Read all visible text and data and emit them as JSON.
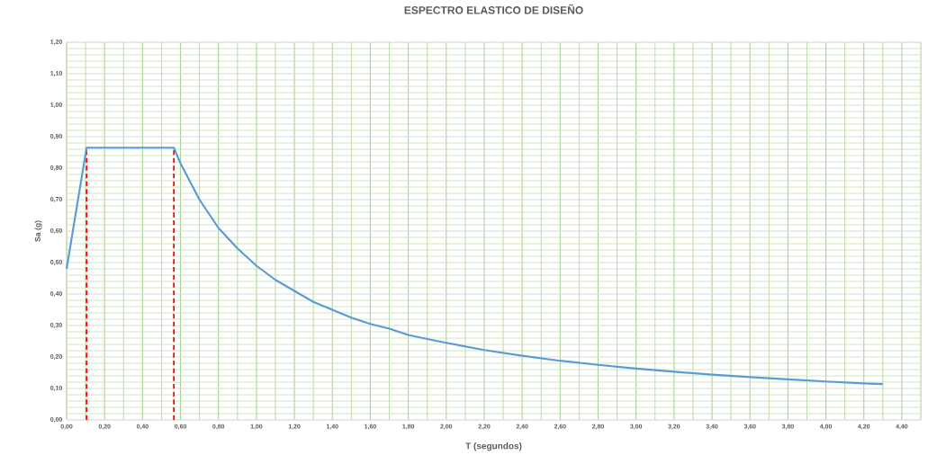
{
  "chart_data": {
    "type": "line",
    "title": "ESPECTRO ELASTICO DE DISEÑO",
    "xlabel": "T (segundos)",
    "ylabel": "Sa (g)",
    "x": [
      0,
      0.105,
      0.565,
      0.6,
      0.7,
      0.8,
      0.9,
      1.0,
      1.1,
      1.2,
      1.3,
      1.4,
      1.5,
      1.6,
      1.7,
      1.8,
      1.9,
      2.0,
      2.2,
      2.4,
      2.6,
      2.8,
      3.0,
      3.2,
      3.4,
      3.6,
      3.8,
      4.0,
      4.2,
      4.3
    ],
    "series": [
      {
        "color": "#5b9bd5",
        "values": [
          0.48,
          0.865,
          0.865,
          0.815,
          0.7,
          0.61,
          0.545,
          0.49,
          0.445,
          0.41,
          0.375,
          0.35,
          0.325,
          0.305,
          0.29,
          0.27,
          0.257,
          0.245,
          0.222,
          0.204,
          0.188,
          0.175,
          0.163,
          0.153,
          0.144,
          0.136,
          0.129,
          0.122,
          0.116,
          0.114
        ]
      }
    ],
    "ref_lines": [
      {
        "axis": "x",
        "value": 0.105,
        "color": "#ff0000",
        "line_style": "dashed"
      },
      {
        "axis": "x",
        "value": 0.565,
        "color": "#ff0000",
        "line_style": "dashed"
      }
    ],
    "xlim": [
      0,
      4.5
    ],
    "ylim": [
      0,
      1.2
    ],
    "xticks": [
      {
        "value": 0,
        "label": "0,00"
      },
      {
        "value": 0.2,
        "label": "0,20"
      },
      {
        "value": 0.4,
        "label": "0,40"
      },
      {
        "value": 0.6,
        "label": "0,60"
      },
      {
        "value": 0.8,
        "label": "0,80"
      },
      {
        "value": 1.0,
        "label": "1,00"
      },
      {
        "value": 1.2,
        "label": "1,20"
      },
      {
        "value": 1.4,
        "label": "1,40"
      },
      {
        "value": 1.6,
        "label": "1,60"
      },
      {
        "value": 1.8,
        "label": "1,80"
      },
      {
        "value": 2.0,
        "label": "2,00"
      },
      {
        "value": 2.2,
        "label": "2,20"
      },
      {
        "value": 2.4,
        "label": "2,40"
      },
      {
        "value": 2.6,
        "label": "2,60"
      },
      {
        "value": 2.8,
        "label": "2,80"
      },
      {
        "value": 3.0,
        "label": "3,00"
      },
      {
        "value": 3.2,
        "label": "3,20"
      },
      {
        "value": 3.4,
        "label": "3,40"
      },
      {
        "value": 3.6,
        "label": "3,60"
      },
      {
        "value": 3.8,
        "label": "3,80"
      },
      {
        "value": 4.0,
        "label": "4,00"
      },
      {
        "value": 4.2,
        "label": "4,20"
      },
      {
        "value": 4.4,
        "label": "4,40"
      },
      {
        "value": 0.1,
        "label": null
      },
      {
        "value": 0.3,
        "label": null
      },
      {
        "value": 0.5,
        "label": null
      },
      {
        "value": 0.7,
        "label": null
      },
      {
        "value": 0.9,
        "label": null
      },
      {
        "value": 1.1,
        "label": null
      },
      {
        "value": 1.3,
        "label": null
      },
      {
        "value": 1.5,
        "label": null
      },
      {
        "value": 1.7,
        "label": null
      },
      {
        "value": 1.9,
        "label": null
      },
      {
        "value": 2.1,
        "label": null
      },
      {
        "value": 2.3,
        "label": null
      },
      {
        "value": 2.5,
        "label": null
      },
      {
        "value": 2.7,
        "label": null
      },
      {
        "value": 2.9,
        "label": null
      },
      {
        "value": 3.1,
        "label": null
      },
      {
        "value": 3.3,
        "label": null
      },
      {
        "value": 3.5,
        "label": null
      },
      {
        "value": 3.7,
        "label": null
      },
      {
        "value": 3.9,
        "label": null
      },
      {
        "value": 4.1,
        "label": null
      },
      {
        "value": 4.3,
        "label": null
      },
      {
        "value": 4.5,
        "label": null
      }
    ],
    "yticks": [
      {
        "value": 0,
        "label": "0,00"
      },
      {
        "value": 0.1,
        "label": "0,10"
      },
      {
        "value": 0.2,
        "label": "0,20"
      },
      {
        "value": 0.3,
        "label": "0,30"
      },
      {
        "value": 0.4,
        "label": "0,40"
      },
      {
        "value": 0.5,
        "label": "0,50"
      },
      {
        "value": 0.6,
        "label": "0,60"
      },
      {
        "value": 0.7,
        "label": "0,70"
      },
      {
        "value": 0.8,
        "label": "0,80"
      },
      {
        "value": 0.9,
        "label": "0,90"
      },
      {
        "value": 1.0,
        "label": "1,00"
      },
      {
        "value": 1.1,
        "label": "1,10"
      },
      {
        "value": 1.2,
        "label": "1,20"
      },
      {
        "value": 0.02,
        "label": null
      },
      {
        "value": 0.04,
        "label": null
      },
      {
        "value": 0.06,
        "label": null
      },
      {
        "value": 0.08,
        "label": null
      },
      {
        "value": 0.12,
        "label": null
      },
      {
        "value": 0.14,
        "label": null
      },
      {
        "value": 0.16,
        "label": null
      },
      {
        "value": 0.18,
        "label": null
      },
      {
        "value": 0.22,
        "label": null
      },
      {
        "value": 0.24,
        "label": null
      },
      {
        "value": 0.26,
        "label": null
      },
      {
        "value": 0.28,
        "label": null
      },
      {
        "value": 0.32,
        "label": null
      },
      {
        "value": 0.34,
        "label": null
      },
      {
        "value": 0.36,
        "label": null
      },
      {
        "value": 0.38,
        "label": null
      },
      {
        "value": 0.42,
        "label": null
      },
      {
        "value": 0.44,
        "label": null
      },
      {
        "value": 0.46,
        "label": null
      },
      {
        "value": 0.48,
        "label": null
      },
      {
        "value": 0.52,
        "label": null
      },
      {
        "value": 0.54,
        "label": null
      },
      {
        "value": 0.56,
        "label": null
      },
      {
        "value": 0.58,
        "label": null
      },
      {
        "value": 0.62,
        "label": null
      },
      {
        "value": 0.64,
        "label": null
      },
      {
        "value": 0.66,
        "label": null
      },
      {
        "value": 0.68,
        "label": null
      },
      {
        "value": 0.72,
        "label": null
      },
      {
        "value": 0.74,
        "label": null
      },
      {
        "value": 0.76,
        "label": null
      },
      {
        "value": 0.78,
        "label": null
      },
      {
        "value": 0.82,
        "label": null
      },
      {
        "value": 0.84,
        "label": null
      },
      {
        "value": 0.86,
        "label": null
      },
      {
        "value": 0.88,
        "label": null
      },
      {
        "value": 0.92,
        "label": null
      },
      {
        "value": 0.94,
        "label": null
      },
      {
        "value": 0.96,
        "label": null
      },
      {
        "value": 0.98,
        "label": null
      },
      {
        "value": 1.02,
        "label": null
      },
      {
        "value": 1.04,
        "label": null
      },
      {
        "value": 1.06,
        "label": null
      },
      {
        "value": 1.08,
        "label": null
      },
      {
        "value": 1.12,
        "label": null
      },
      {
        "value": 1.14,
        "label": null
      },
      {
        "value": 1.16,
        "label": null
      },
      {
        "value": 1.18,
        "label": null
      }
    ],
    "grid": true,
    "marker": "none",
    "line_style": "solid"
  }
}
